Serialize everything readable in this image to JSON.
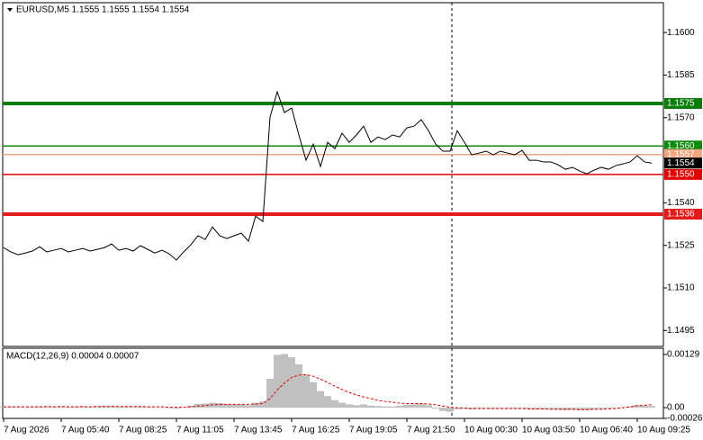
{
  "chart_data": [
    {
      "type": "line",
      "title": "EURUSD,M5  1.1555 1.1555 1.1554 1.1554",
      "ylim": [
        1.14894,
        1.16105
      ],
      "yticks": [
        {
          "value": 1.16,
          "label": "1.1600"
        },
        1.1585,
        {
          "value": 1.157,
          "label": "1.1570"
        },
        {
          "value": 1.154,
          "label": "1.1540"
        },
        1.1525,
        {
          "value": 1.151,
          "label": "1.1510"
        },
        1.1495
      ],
      "xticks": [
        {
          "value": 0,
          "label": "7 Aug 2026"
        },
        {
          "value": 8,
          "label": "7 Aug 05:40"
        },
        {
          "value": 16,
          "label": "7 Aug 08:25"
        },
        {
          "value": 24,
          "label": "7 Aug 11:05"
        },
        {
          "value": 32,
          "label": "7 Aug 13:45"
        },
        {
          "value": 40,
          "label": "7 Aug 16:25"
        },
        {
          "value": 48,
          "label": "7 Aug 19:05"
        },
        {
          "value": 56,
          "label": "7 Aug 21:50"
        },
        {
          "value": 64,
          "label": "10 Aug 00:30"
        },
        {
          "value": 72,
          "label": "10 Aug 03:50"
        },
        {
          "value": 80,
          "label": "10 Aug 06:40"
        },
        {
          "value": 88,
          "label": "10 Aug 09:25"
        }
      ],
      "series": [
        {
          "color": "#000000",
          "values": [
            1.15242,
            1.15227,
            1.15217,
            1.15223,
            1.1523,
            1.15245,
            1.15227,
            1.15233,
            1.15239,
            1.15227,
            1.15233,
            1.15239,
            1.1523,
            1.15236,
            1.15242,
            1.15255,
            1.15233,
            1.15239,
            1.1523,
            1.15249,
            1.15236,
            1.15223,
            1.15233,
            1.1522,
            1.15198,
            1.15227,
            1.15252,
            1.15284,
            1.15271,
            1.15315,
            1.15284,
            1.15274,
            1.15284,
            1.15293,
            1.15265,
            1.15353,
            1.15334,
            1.15702,
            1.15791,
            1.15718,
            1.15734,
            1.15639,
            1.1555,
            1.15607,
            1.15528,
            1.15613,
            1.15591,
            1.15645,
            1.15613,
            1.15639,
            1.1567,
            1.15613,
            1.15632,
            1.15623,
            1.15639,
            1.15632,
            1.15664,
            1.1567,
            1.15693,
            1.15654,
            1.15607,
            1.15582,
            1.15582,
            1.15654,
            1.15613,
            1.15569,
            1.15575,
            1.15582,
            1.15569,
            1.15582,
            1.15575,
            1.15569,
            1.15585,
            1.1555,
            1.1555,
            1.15544,
            1.15544,
            1.15534,
            1.15518,
            1.15525,
            1.15512,
            1.15502,
            1.15515,
            1.15525,
            1.15518,
            1.15531,
            1.15537,
            1.15544,
            1.15566,
            1.15544,
            1.1554
          ]
        }
      ],
      "levels": [
        {
          "value": 1.1575,
          "label": "1.1575",
          "color": "#0b7d0b",
          "style": "thick"
        },
        {
          "value": 1.156,
          "label": "1.1560",
          "color": "#0b8a0b",
          "style": "thin"
        },
        {
          "value": 1.1557,
          "label": "1.1557",
          "color": "#f4a582",
          "style": "thin"
        },
        {
          "value": 1.155,
          "label": "1.1550",
          "color": "#e00000",
          "style": "thin"
        },
        {
          "value": 1.1536,
          "label": "1.1536",
          "color": "#e41b1b",
          "style": "thick"
        }
      ],
      "last_price": {
        "value": 1.1554,
        "label": "1.1554"
      }
    },
    {
      "type": "macd",
      "title": "MACD(12,26,9) 0.00004 0.00007",
      "ylim": [
        -0.00026,
        0.00144
      ],
      "yticks": [
        0.00129,
        {
          "value": 0,
          "label": "0.00"
        },
        -0.00026
      ],
      "series": [
        {
          "name": "MACD",
          "color": "#c0c0c0",
          "values": [
            2e-05,
            3e-05,
            2e-05,
            1e-05,
            2e-05,
            3e-05,
            3e-05,
            2e-05,
            3e-05,
            2e-05,
            2e-05,
            3e-05,
            2e-05,
            3e-05,
            4e-05,
            4e-05,
            3e-05,
            3e-05,
            2e-05,
            3e-05,
            2e-05,
            1e-05,
            1e-05,
            0,
            -2e-05,
            1e-05,
            5e-05,
            9e-05,
            0.0001,
            0.00012,
            0.00011,
            9e-05,
            8e-05,
            8e-05,
            6e-05,
            0.00012,
            0.00015,
            0.0007,
            0.00128,
            0.0013,
            0.00122,
            0.00105,
            0.0008,
            0.00062,
            0.0004,
            0.00028,
            0.00018,
            0.00012,
            8e-05,
            6e-05,
            8e-05,
            5e-05,
            4e-05,
            3e-05,
            3e-05,
            5e-05,
            7e-05,
            8e-05,
            0.0001,
            6e-05,
            -2e-05,
            -8e-05,
            -0.0001,
            -4e-05,
            -3e-05,
            -4e-05,
            -3e-05,
            -2e-05,
            -3e-05,
            -2e-05,
            -2e-05,
            -3e-05,
            -2e-05,
            -3e-05,
            -4e-05,
            -4e-05,
            -4e-05,
            -5e-05,
            -6e-05,
            -5e-05,
            -6e-05,
            -6e-05,
            -4e-05,
            -3e-05,
            -2e-05,
            0,
            1e-05,
            3e-05,
            6e-05,
            5e-05,
            4e-05
          ]
        },
        {
          "name": "Signal",
          "color": "#e00000",
          "values": [
            2e-05,
            2e-05,
            2e-05,
            2e-05,
            2e-05,
            2e-05,
            3e-05,
            2e-05,
            3e-05,
            2e-05,
            2e-05,
            3e-05,
            2e-05,
            3e-05,
            3e-05,
            3e-05,
            3e-05,
            3e-05,
            3e-05,
            3e-05,
            2e-05,
            2e-05,
            2e-05,
            1e-05,
            1e-05,
            1e-05,
            2e-05,
            4e-05,
            5e-05,
            7e-05,
            8e-05,
            8e-05,
            8e-05,
            8e-05,
            8e-05,
            9e-05,
            0.0001,
            0.00022,
            0.00043,
            0.0006,
            0.00073,
            0.00079,
            0.0008,
            0.00076,
            0.00069,
            0.00061,
            0.00052,
            0.00044,
            0.00037,
            0.00031,
            0.00026,
            0.00022,
            0.00018,
            0.00015,
            0.00013,
            0.00011,
            0.0001,
            0.0001,
            0.0001,
            9e-05,
            7e-05,
            4e-05,
            1e-05,
            0,
            -1e-05,
            -2e-05,
            -2e-05,
            -2e-05,
            -2e-05,
            -2e-05,
            -2e-05,
            -2e-05,
            -2e-05,
            -3e-05,
            -3e-05,
            -3e-05,
            -4e-05,
            -4e-05,
            -4e-05,
            -4e-05,
            -5e-05,
            -5e-05,
            -4e-05,
            -4e-05,
            -3e-05,
            -2e-05,
            0,
            2e-05,
            5e-05,
            6e-05,
            7e-05
          ]
        }
      ]
    }
  ]
}
